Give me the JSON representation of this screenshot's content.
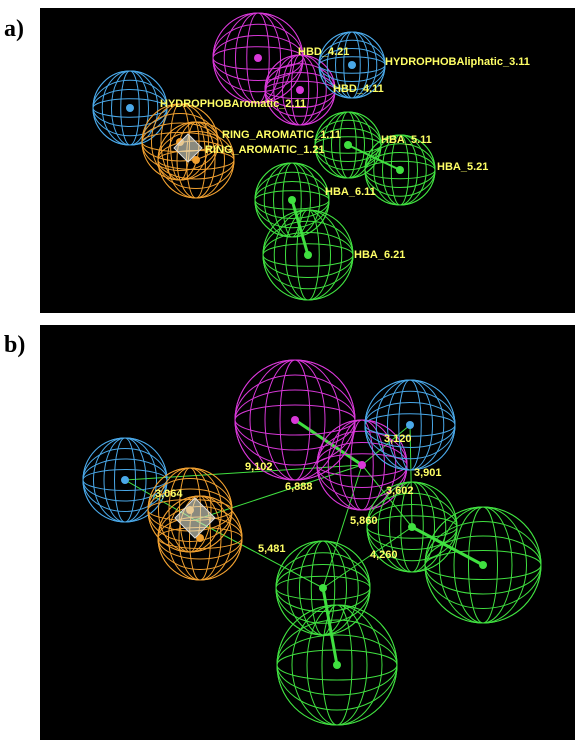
{
  "panels": [
    {
      "label": "a)",
      "features": [
        "HBD_4.21",
        "HYDROPHOBAliphatic_3.11",
        "HBD_4.11",
        "HYDROPHOBAromatic_2.11",
        "RING_AROMATIC_1.11",
        "RING_AROMATIC_1.21",
        "HBA_5.11",
        "HBA_5.21",
        "HBA_6.11",
        "HBA_6.21"
      ]
    },
    {
      "label": "b)",
      "distances": [
        "9,102",
        "6,888",
        "3,064",
        "3,120",
        "3,901",
        "3,602",
        "5,860",
        "4,260",
        "5,481"
      ]
    }
  ]
}
